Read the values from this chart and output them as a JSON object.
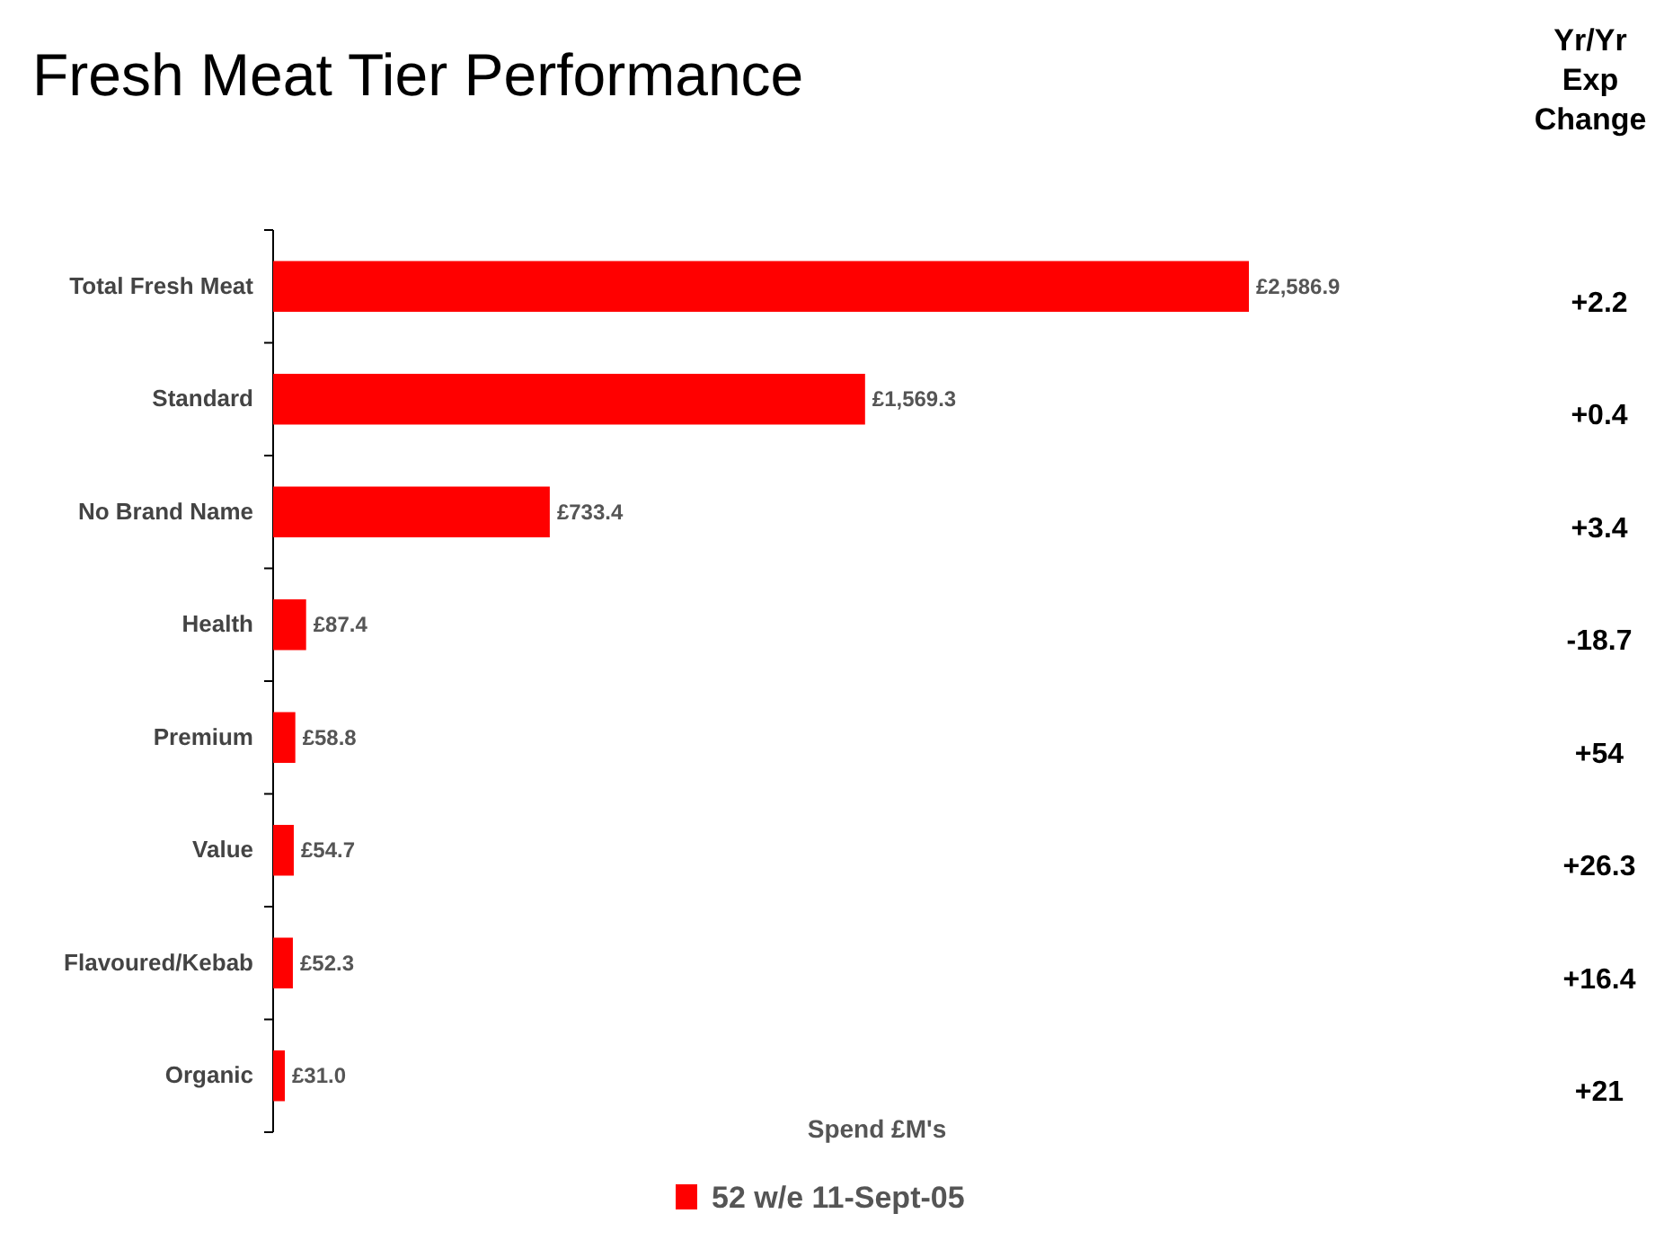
{
  "chart_data": {
    "type": "bar",
    "orientation": "horizontal",
    "title": "Fresh Meat Tier Performance",
    "xlabel": "Spend £M's",
    "categories": [
      "Total Fresh Meat",
      "Standard",
      "No Brand Name",
      "Health",
      "Premium",
      "Value",
      "Flavoured/Kebab",
      "Organic"
    ],
    "series": [
      {
        "name": "52 w/e 11-Sept-05",
        "color": "#ff0000",
        "values": [
          2586.9,
          1569.3,
          733.4,
          87.4,
          58.8,
          54.7,
          52.3,
          31.0
        ],
        "value_labels": [
          "£2,586.9",
          "£1,569.3",
          "£733.4",
          "£87.4",
          "£58.8",
          "£54.7",
          "£52.3",
          "£31.0"
        ]
      }
    ],
    "legend": "bottom",
    "annotations": [
      "Yr/Yr Exp Change",
      "+2.2",
      "+0.4",
      "+3.4",
      "-18.7",
      "+54",
      "+26.3",
      "+16.4",
      "+21"
    ]
  }
}
